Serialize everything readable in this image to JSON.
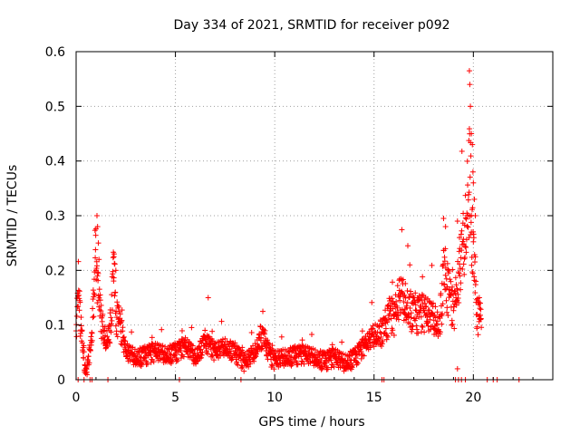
{
  "chart_data": {
    "type": "scatter",
    "title": "Day 334 of 2021, SRMTID for receiver p092",
    "xlabel": "GPS time / hours",
    "ylabel": "SRMTID / TECUs",
    "xlim": [
      0,
      24
    ],
    "ylim": [
      0,
      0.6
    ],
    "xticks": [
      "0",
      "5",
      "10",
      "15",
      "20"
    ],
    "yticks": [
      "0",
      "0.1",
      "0.2",
      "0.3",
      "0.4",
      "0.5",
      "0.6"
    ],
    "grid": true,
    "marker": "+",
    "color": "#ff0000",
    "trend": [
      [
        0.0,
        0.07
      ],
      [
        0.1,
        0.19
      ],
      [
        0.2,
        0.11
      ],
      [
        0.3,
        0.08
      ],
      [
        0.5,
        0.0
      ],
      [
        0.8,
        0.09
      ],
      [
        1.0,
        0.26
      ],
      [
        1.1,
        0.16
      ],
      [
        1.3,
        0.1
      ],
      [
        1.5,
        0.07
      ],
      [
        1.7,
        0.09
      ],
      [
        1.9,
        0.2
      ],
      [
        2.0,
        0.12
      ],
      [
        2.2,
        0.1
      ],
      [
        2.5,
        0.05
      ],
      [
        3.0,
        0.04
      ],
      [
        3.5,
        0.045
      ],
      [
        4.0,
        0.05
      ],
      [
        4.5,
        0.045
      ],
      [
        5.0,
        0.05
      ],
      [
        5.5,
        0.06
      ],
      [
        5.8,
        0.05
      ],
      [
        6.0,
        0.04
      ],
      [
        6.5,
        0.07
      ],
      [
        7.0,
        0.05
      ],
      [
        7.5,
        0.06
      ],
      [
        8.0,
        0.05
      ],
      [
        8.5,
        0.03
      ],
      [
        9.0,
        0.05
      ],
      [
        9.3,
        0.08
      ],
      [
        9.5,
        0.07
      ],
      [
        9.8,
        0.04
      ],
      [
        10.0,
        0.035
      ],
      [
        10.5,
        0.04
      ],
      [
        11.0,
        0.045
      ],
      [
        11.5,
        0.045
      ],
      [
        12.0,
        0.04
      ],
      [
        12.5,
        0.035
      ],
      [
        13.0,
        0.04
      ],
      [
        13.5,
        0.03
      ],
      [
        14.0,
        0.04
      ],
      [
        14.5,
        0.06
      ],
      [
        15.0,
        0.08
      ],
      [
        15.5,
        0.09
      ],
      [
        15.8,
        0.12
      ],
      [
        16.0,
        0.11
      ],
      [
        16.3,
        0.15
      ],
      [
        16.6,
        0.14
      ],
      [
        17.0,
        0.12
      ],
      [
        17.5,
        0.12
      ],
      [
        18.0,
        0.11
      ],
      [
        18.3,
        0.1
      ],
      [
        18.5,
        0.19
      ],
      [
        18.7,
        0.17
      ],
      [
        19.0,
        0.12
      ],
      [
        19.3,
        0.19
      ],
      [
        19.6,
        0.27
      ],
      [
        19.8,
        0.4
      ],
      [
        20.0,
        0.22
      ],
      [
        20.2,
        0.12
      ],
      [
        20.4,
        0.1
      ]
    ],
    "spikes": [
      [
        1.05,
        0.3
      ],
      [
        1.08,
        0.28
      ],
      [
        1.12,
        0.25
      ],
      [
        1.15,
        0.22
      ],
      [
        1.0,
        0.2
      ],
      [
        1.9,
        0.225
      ],
      [
        2.0,
        0.2
      ],
      [
        6.65,
        0.15
      ],
      [
        9.4,
        0.125
      ],
      [
        16.7,
        0.245
      ],
      [
        16.8,
        0.21
      ],
      [
        18.5,
        0.295
      ],
      [
        18.6,
        0.28
      ],
      [
        19.2,
        0.29
      ],
      [
        19.3,
        0.26
      ],
      [
        19.8,
        0.565
      ],
      [
        19.82,
        0.54
      ],
      [
        19.85,
        0.5
      ],
      [
        19.9,
        0.45
      ],
      [
        19.95,
        0.43
      ],
      [
        19.98,
        0.38
      ],
      [
        20.0,
        0.36
      ],
      [
        20.05,
        0.33
      ],
      [
        20.1,
        0.3
      ],
      [
        19.78,
        0.26
      ],
      [
        19.9,
        0.27
      ],
      [
        20.3,
        0.15
      ],
      [
        20.35,
        0.14
      ],
      [
        19.2,
        0.02
      ],
      [
        19.25,
        0.0
      ]
    ],
    "zero_points": [
      0.1,
      0.4,
      0.7,
      0.8,
      1.6,
      5.2,
      8.3,
      15.4,
      15.5,
      19.1,
      19.4,
      19.6,
      20.7,
      21.0,
      21.2,
      22.3
    ]
  }
}
